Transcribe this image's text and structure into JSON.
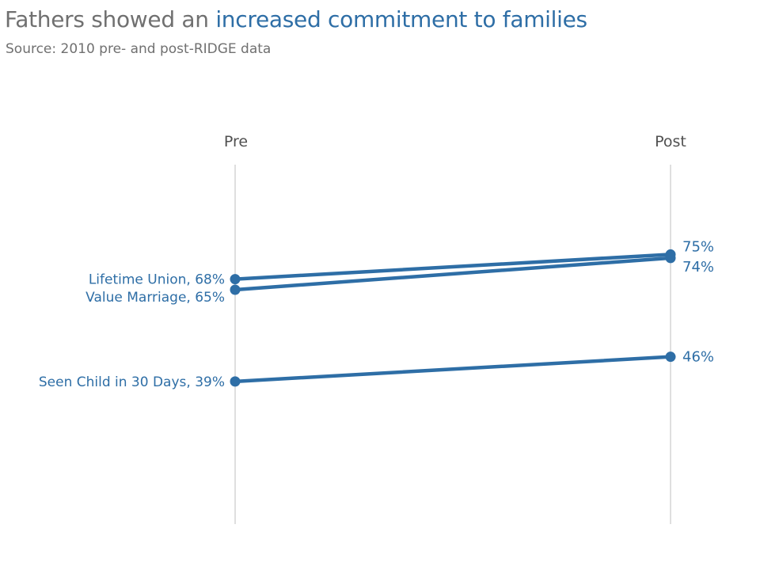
{
  "header": {
    "title_prefix": "Fathers showed an ",
    "title_highlight": "increased commitment to families",
    "subtitle": "Source: 2010 pre- and post-RIDGE data"
  },
  "colors": {
    "series": "#2e6ea6",
    "axis": "#bfbfbf",
    "title_gray": "#707070"
  },
  "chart_data": {
    "type": "line",
    "title": "Fathers showed an increased commitment to families",
    "subtitle": "Source: 2010 pre- and post-RIDGE data",
    "categories": [
      "Pre",
      "Post"
    ],
    "ylim": [
      0,
      100
    ],
    "grid": false,
    "legend": "none",
    "series": [
      {
        "name": "Lifetime Union",
        "values": [
          68,
          75
        ],
        "pre_label": "Lifetime Union, 68%",
        "post_label": "75%"
      },
      {
        "name": "Value Marriage",
        "values": [
          65,
          74
        ],
        "pre_label": "Value Marriage, 65%",
        "post_label": "74%"
      },
      {
        "name": "Seen Child in 30 Days",
        "values": [
          39,
          46
        ],
        "pre_label": "Seen Child in 30 Days, 39%",
        "post_label": "46%"
      }
    ]
  }
}
